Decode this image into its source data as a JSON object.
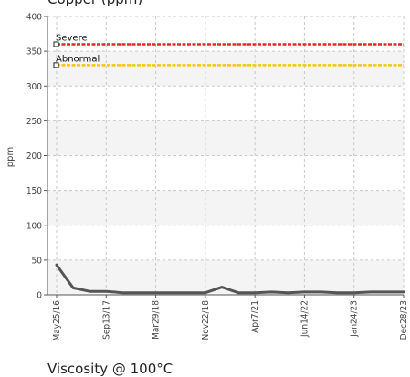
{
  "chart_data": {
    "type": "line",
    "title": "Copper (ppm)",
    "ylabel": "ppm",
    "ylim": [
      0,
      400
    ],
    "yticks": [
      0,
      50,
      100,
      150,
      200,
      250,
      300,
      350,
      400
    ],
    "xtick_labels": [
      "May25/16",
      "Sep13/17",
      "Mar29/18",
      "Nov22/18",
      "Apr7/21",
      "Jun14/22",
      "Jan24/23",
      "Dec28/23"
    ],
    "limits": [
      {
        "name": "Severe",
        "value": 360,
        "color": "#e8262a"
      },
      {
        "name": "Abnormal",
        "value": 330,
        "color": "#f2c811"
      }
    ],
    "series": [
      {
        "color": "#555555",
        "values": [
          43,
          10,
          5,
          5,
          3,
          3,
          3,
          3,
          3,
          3,
          11,
          3,
          3,
          4,
          3,
          4,
          4,
          3,
          3,
          4,
          4,
          4
        ]
      }
    ],
    "grid": true
  },
  "next_chart": {
    "title": "Viscosity @ 100°C"
  }
}
